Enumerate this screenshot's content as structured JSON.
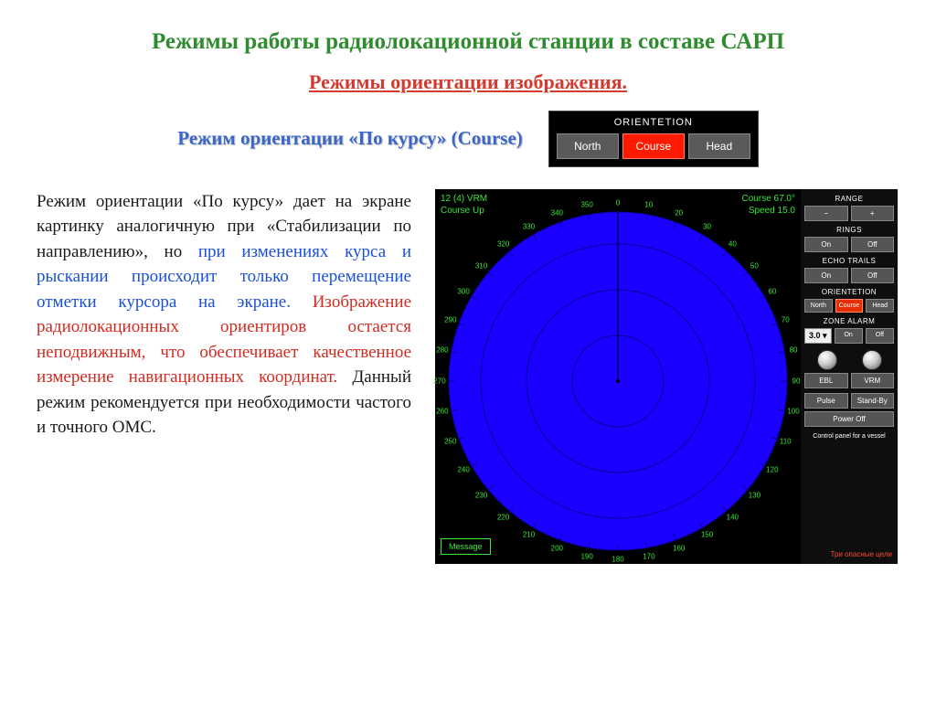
{
  "title": "Режимы работы радиолокационной станции в составе САРП",
  "subtitle": "Режимы ориентации изображения.",
  "mode_label": "Режим ориентации «По курсу» (Course)",
  "orientation_panel": {
    "caption": "ORIENTETION",
    "buttons": [
      "North",
      "Course",
      "Head"
    ],
    "active_index": 1,
    "btn_bg": "#5a5a5a",
    "btn_active_bg": "#ff1a00"
  },
  "paragraph": {
    "seg1": "Режим ориентации «По курсу» дает на экране картинку аналогичную при «Стабилизации по направлению», но ",
    "seg2_blue": "при изменениях курса и рыскании происходит только перемещение отметки курсора на экране.",
    "seg3_red": " Изображение радиолокационных ориентиров остается неподвижным, что обеспечивает качественное измерение навигационных координат.",
    "seg4": " Данный режим рекомендуется при необходимости частого и точного ОМС."
  },
  "radar": {
    "top_left_line1": "12 (4)   VRM",
    "top_left_line2": "Course Up",
    "top_right_line1": "Course  67.0°",
    "top_right_line2": "Speed  15.0",
    "message_label": "Message",
    "bg": "#000000",
    "circle_fill": "#1a00ff",
    "ring_stroke": "#0a009a",
    "heading_line_color": "#000000",
    "green": "#37e637",
    "rings": [
      50,
      100,
      150,
      185
    ],
    "heading_angle_deg": 0,
    "degree_labels": [
      0,
      10,
      20,
      30,
      40,
      50,
      60,
      70,
      80,
      90,
      100,
      110,
      120,
      130,
      140,
      150,
      160,
      170,
      180,
      190,
      200,
      210,
      220,
      230,
      240,
      250,
      260,
      270,
      280,
      290,
      300,
      310,
      320,
      330,
      340,
      350
    ]
  },
  "side": {
    "range_label": "RANGE",
    "range_minus": "−",
    "range_plus": "+",
    "rings_label": "RINGS",
    "on": "On",
    "off": "Off",
    "echo_label": "ECHO TRAILS",
    "orient_label": "ORIENTETION",
    "orient_btns": [
      "North",
      "Course",
      "Head"
    ],
    "orient_active": 1,
    "zone_label": "ZONE ALARM",
    "zone_value": "3.0 ▾",
    "ebl": "EBL",
    "vrm": "VRM",
    "pulse": "Pulse",
    "standby": "Stand-By",
    "power": "Power Off",
    "foot": "Control panel for a vessel",
    "redtext": "Три опасные цели"
  },
  "colors": {
    "title": "#2e8b2e",
    "subtitle": "#d43a2f",
    "mode": "#3a66c8"
  }
}
